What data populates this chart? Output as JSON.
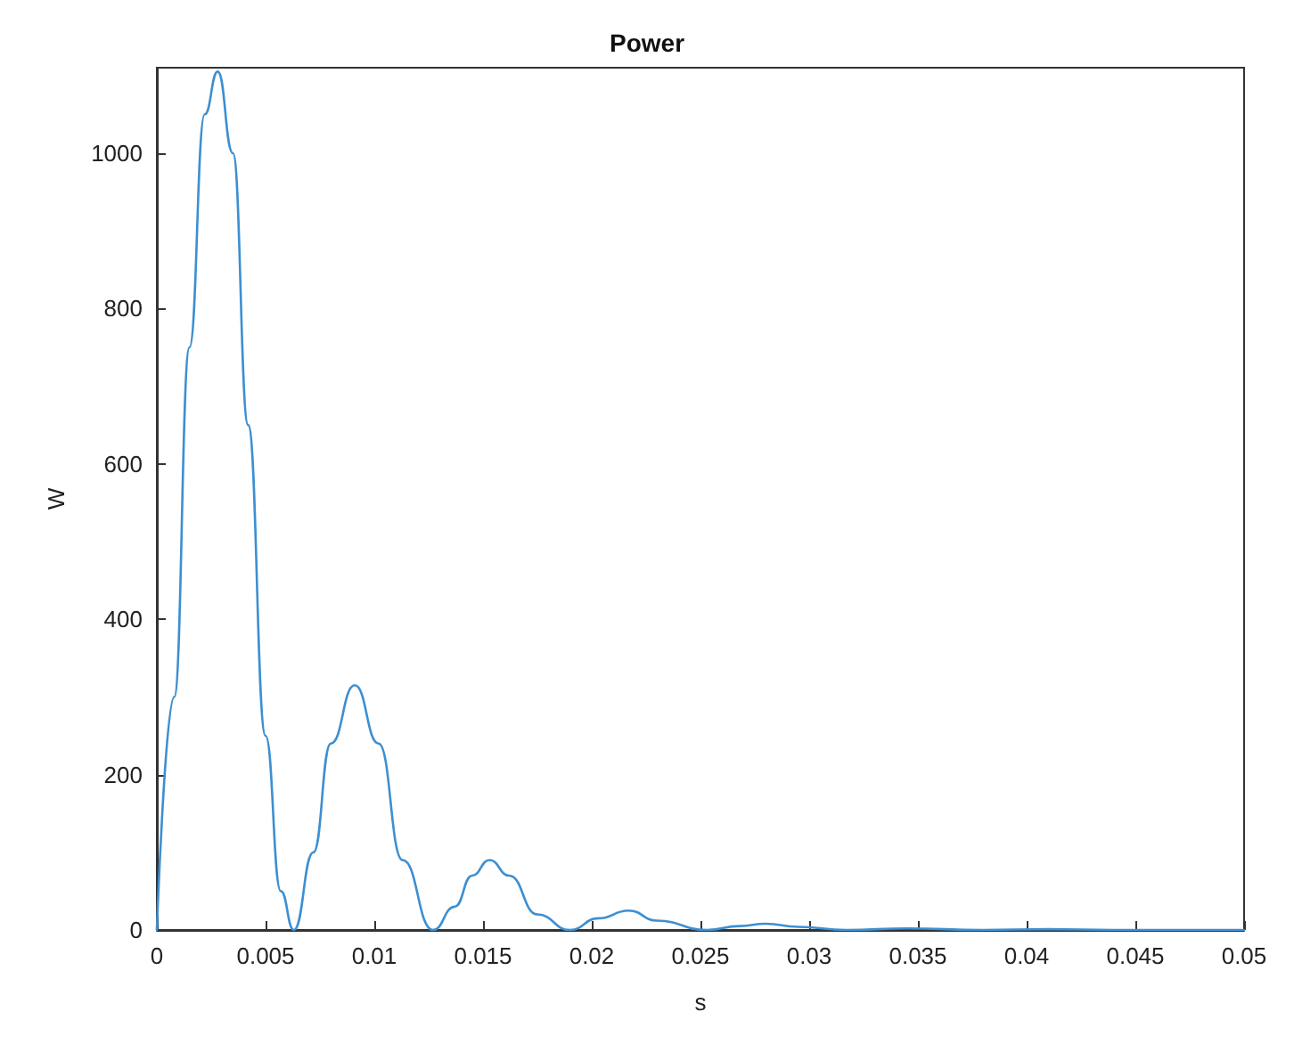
{
  "chart_data": {
    "type": "line",
    "title": "Power",
    "xlabel": "s",
    "ylabel": "W",
    "x": [
      0,
      0.0008,
      0.0015,
      0.0022,
      0.0028,
      0.0035,
      0.0042,
      0.005,
      0.0057,
      0.0063,
      0.0072,
      0.008,
      0.0091,
      0.0102,
      0.0113,
      0.0127,
      0.0137,
      0.0145,
      0.0153,
      0.0162,
      0.0175,
      0.019,
      0.0203,
      0.0217,
      0.023,
      0.0253,
      0.0268,
      0.028,
      0.0295,
      0.0317,
      0.0345,
      0.038,
      0.041,
      0.044,
      0.047,
      0.05
    ],
    "series": [
      {
        "color": "#3d8fd1",
        "values": [
          0,
          300,
          750,
          1050,
          1105,
          1000,
          650,
          250,
          50,
          0,
          100,
          240,
          315,
          240,
          90,
          0,
          30,
          70,
          90,
          70,
          20,
          0,
          15,
          25,
          12,
          0,
          5,
          8,
          4,
          0,
          2,
          0,
          1,
          0,
          0,
          0
        ]
      }
    ],
    "xlim": [
      0,
      0.05
    ],
    "xticks": [
      0,
      0.005,
      0.01,
      0.015,
      0.02,
      0.025,
      0.03,
      0.035,
      0.04,
      0.045,
      0.05
    ],
    "ylim": [
      0,
      1110
    ],
    "yticks": [
      0,
      200,
      400,
      600,
      800,
      1000
    ],
    "grid": false,
    "marker": "none",
    "line_style": "solid"
  }
}
